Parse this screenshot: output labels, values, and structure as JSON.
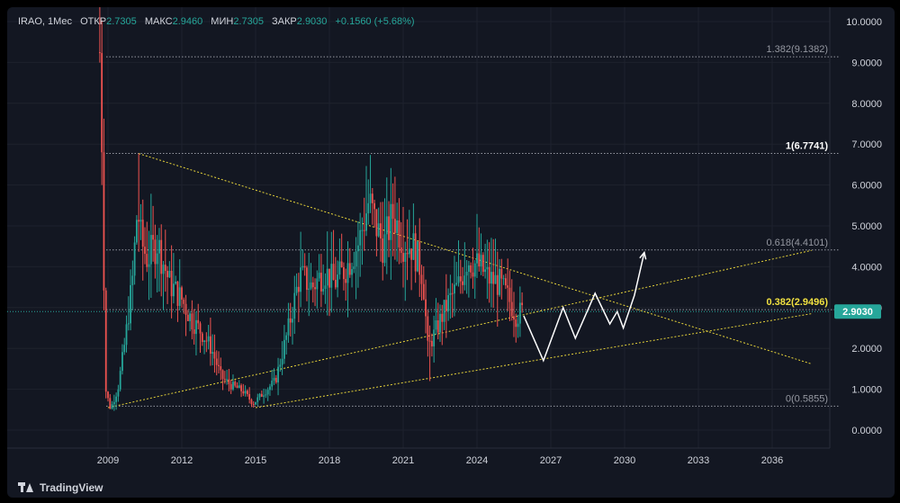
{
  "legend": {
    "symbol": "IRAO, 1Мес",
    "open_label": "ОТКР",
    "open_value": "2.7305",
    "high_label": "МАКС",
    "high_value": "2.9460",
    "low_label": "МИН",
    "low_value": "2.7305",
    "close_label": "ЗАКР",
    "close_value": "2.9030",
    "change": "+0.1560 (+5.68%)"
  },
  "brand": {
    "name": "TradingView",
    "icon": "tradingview-logo-icon"
  },
  "colors": {
    "background": "#131722",
    "up": "#26a69a",
    "down": "#ef5350",
    "fib_line": "#9598a1",
    "trend_line": "#e6d33a",
    "projection": "#ffffff",
    "price_badge": "#26a69a"
  },
  "chart_data": {
    "type": "candlestick",
    "ylim": [
      0,
      10
    ],
    "y_ticks": [
      "0.0000",
      "1.0000",
      "2.0000",
      "3.0000",
      "4.0000",
      "5.0000",
      "6.0000",
      "7.0000",
      "8.0000",
      "9.0000",
      "10.0000"
    ],
    "x_ticks": [
      "2009",
      "2012",
      "2015",
      "2018",
      "2021",
      "2024",
      "2027",
      "2030",
      "2033",
      "2036"
    ],
    "grid": true,
    "last_price": "2.9030",
    "fib_levels": [
      {
        "label": "1.382(9.1382)",
        "value": 9.1382
      },
      {
        "label": "1(6.7741)",
        "value": 6.7741
      },
      {
        "label": "0.618(4.4101)",
        "value": 4.4101
      },
      {
        "label": "0.382(2.9496)",
        "value": 2.9496
      },
      {
        "label": "0(0.5855)",
        "value": 0.5855
      }
    ],
    "trend_lines": [
      {
        "from": [
          2009.0,
          0.55
        ],
        "to": [
          2037.6,
          4.4
        ]
      },
      {
        "from": [
          2015.0,
          0.55
        ],
        "to": [
          2037.6,
          2.85
        ]
      },
      {
        "from": [
          2010.25,
          6.77
        ],
        "to": [
          2037.6,
          1.62
        ]
      }
    ],
    "projection_path": [
      [
        2025.9,
        2.8
      ],
      [
        2026.7,
        1.7
      ],
      [
        2027.5,
        3.0
      ],
      [
        2028.0,
        2.25
      ],
      [
        2028.8,
        3.35
      ],
      [
        2029.4,
        2.6
      ],
      [
        2029.7,
        2.9
      ],
      [
        2029.95,
        2.5
      ],
      [
        2030.4,
        3.3
      ],
      [
        2030.8,
        4.35
      ]
    ],
    "price_anchors": [
      [
        2008.7,
        9.25
      ],
      [
        2008.9,
        1.0
      ],
      [
        2009.1,
        0.52
      ],
      [
        2009.4,
        1.0
      ],
      [
        2009.7,
        2.2
      ],
      [
        2010.0,
        3.7
      ],
      [
        2010.2,
        5.5
      ],
      [
        2010.35,
        4.6
      ],
      [
        2010.6,
        4.2
      ],
      [
        2011.0,
        4.6
      ],
      [
        2011.5,
        3.6
      ],
      [
        2012.0,
        3.2
      ],
      [
        2012.4,
        2.7
      ],
      [
        2012.8,
        2.4
      ],
      [
        2013.2,
        2.0
      ],
      [
        2013.6,
        1.3
      ],
      [
        2014.0,
        1.1
      ],
      [
        2014.5,
        0.95
      ],
      [
        2014.9,
        0.65
      ],
      [
        2015.3,
        0.9
      ],
      [
        2015.8,
        1.2
      ],
      [
        2016.3,
        2.4
      ],
      [
        2016.8,
        3.8
      ],
      [
        2017.3,
        3.5
      ],
      [
        2017.8,
        3.9
      ],
      [
        2018.2,
        3.6
      ],
      [
        2018.7,
        4.0
      ],
      [
        2019.2,
        4.6
      ],
      [
        2019.6,
        5.6
      ],
      [
        2019.9,
        5.0
      ],
      [
        2020.2,
        4.5
      ],
      [
        2020.6,
        5.3
      ],
      [
        2021.0,
        4.6
      ],
      [
        2021.4,
        4.5
      ],
      [
        2021.8,
        3.8
      ],
      [
        2022.0,
        2.0
      ],
      [
        2022.3,
        2.4
      ],
      [
        2022.8,
        3.1
      ],
      [
        2023.3,
        3.6
      ],
      [
        2023.6,
        4.2
      ],
      [
        2024.1,
        4.0
      ],
      [
        2024.5,
        3.7
      ],
      [
        2024.9,
        3.6
      ],
      [
        2025.3,
        3.2
      ],
      [
        2025.6,
        2.8
      ],
      [
        2025.8,
        2.9
      ]
    ],
    "notable_wicks": [
      [
        2008.7,
        9.25
      ],
      [
        2010.25,
        6.77
      ],
      [
        2019.7,
        6.5
      ],
      [
        2022.05,
        1.2
      ],
      [
        2023.5,
        4.6
      ],
      [
        2024.3,
        4.55
      ]
    ]
  }
}
